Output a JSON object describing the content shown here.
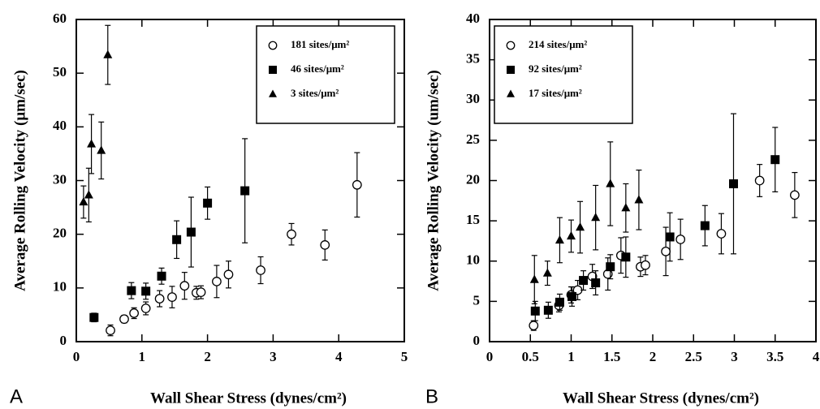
{
  "chart_data": [
    {
      "type": "scatter",
      "panel_label": "A",
      "x_label": "Wall Shear Stress (dynes/cm²)",
      "y_label": "Average Rolling Velocity (μm/sec)",
      "xlim": [
        0,
        5
      ],
      "xticks": [
        0,
        1,
        2,
        3,
        4,
        5
      ],
      "ylim": [
        0,
        60
      ],
      "yticks": [
        0,
        10,
        20,
        30,
        40,
        50,
        60
      ],
      "legend": "top-right",
      "series": [
        {
          "name": "181 sites/μm²",
          "color": "#000000",
          "marker": "circle",
          "x": [
            0.52,
            0.73,
            0.88,
            1.06,
            1.27,
            1.46,
            1.65,
            1.83,
            1.9,
            2.14,
            2.32,
            2.81,
            3.28,
            3.79,
            4.28
          ],
          "values": [
            2.1,
            4.2,
            5.3,
            6.2,
            8,
            8.3,
            10.4,
            9.1,
            9.2,
            11.2,
            12.5,
            13.3,
            20,
            18,
            29.2
          ],
          "errors": [
            1,
            0.7,
            1,
            1.2,
            1.5,
            2,
            2.5,
            1.2,
            1.2,
            3,
            2.5,
            2.5,
            2,
            2.8,
            6
          ]
        },
        {
          "name": "46 sites/μm²",
          "color": "#000000",
          "marker": "square",
          "x": [
            0.27,
            0.84,
            1.06,
            1.3,
            1.53,
            1.75,
            2.0,
            2.57
          ],
          "values": [
            4.5,
            9.5,
            9.4,
            12.2,
            19,
            20.4,
            25.8,
            28.1
          ],
          "errors": [
            0.8,
            1.5,
            1.5,
            1.5,
            3.5,
            6.5,
            3,
            9.7
          ]
        },
        {
          "name": "3 sites/μm²",
          "color": "#000000",
          "marker": "triangle",
          "x": [
            0.11,
            0.19,
            0.23,
            0.38,
            0.48
          ],
          "values": [
            26,
            27.3,
            36.8,
            35.6,
            53.4
          ],
          "errors": [
            3,
            5,
            5.5,
            5.3,
            5.5
          ]
        }
      ]
    },
    {
      "type": "scatter",
      "panel_label": "B",
      "x_label": "Wall Shear Stress (dynes/cm²)",
      "y_label": "Average Rolling Velocity (um/sec)",
      "xlim": [
        0,
        4
      ],
      "xticks": [
        0,
        0.5,
        1,
        1.5,
        2,
        2.5,
        3,
        3.5,
        4
      ],
      "ylim": [
        0,
        40
      ],
      "yticks": [
        0,
        5,
        10,
        15,
        20,
        25,
        30,
        35,
        40
      ],
      "legend": "top-left",
      "series": [
        {
          "name": "214 sites/μm²",
          "color": "#000000",
          "marker": "circle",
          "x": [
            0.54,
            0.85,
            1.0,
            1.08,
            1.26,
            1.45,
            1.61,
            1.85,
            1.91,
            2.16,
            2.34,
            2.84,
            3.31,
            3.74
          ],
          "values": [
            2.0,
            4.5,
            5.8,
            6.4,
            8.1,
            8.4,
            10.7,
            9.3,
            9.5,
            11.2,
            12.7,
            13.4,
            20,
            18.2
          ],
          "errors": [
            0.6,
            0.8,
            1,
            1.2,
            1.5,
            2,
            2.2,
            1.2,
            1.2,
            3,
            2.5,
            2.5,
            2,
            2.8
          ]
        },
        {
          "name": "92 sites/μm²",
          "color": "#000000",
          "marker": "square",
          "x": [
            0.56,
            0.72,
            0.86,
            1.01,
            1.15,
            1.3,
            1.48,
            1.67,
            2.21,
            2.64,
            2.99,
            3.5
          ],
          "values": [
            3.8,
            3.9,
            4.9,
            5.6,
            7.6,
            7.3,
            9.3,
            10.5,
            13,
            14.4,
            19.6,
            22.6
          ],
          "errors": [
            1.2,
            1,
            1,
            1.2,
            1.2,
            1.5,
            1.5,
            2.5,
            3,
            2.5,
            8.7,
            4
          ]
        },
        {
          "name": "17 sites/μm²",
          "color": "#000000",
          "marker": "triangle",
          "x": [
            0.55,
            0.71,
            0.86,
            1.0,
            1.11,
            1.3,
            1.48,
            1.67,
            1.83
          ],
          "values": [
            7.7,
            8.5,
            12.6,
            13.1,
            14.2,
            15.4,
            19.6,
            16.6,
            17.6
          ],
          "errors": [
            3,
            1.5,
            2.8,
            2,
            3.2,
            4,
            5.2,
            3,
            3.7
          ]
        }
      ]
    }
  ]
}
